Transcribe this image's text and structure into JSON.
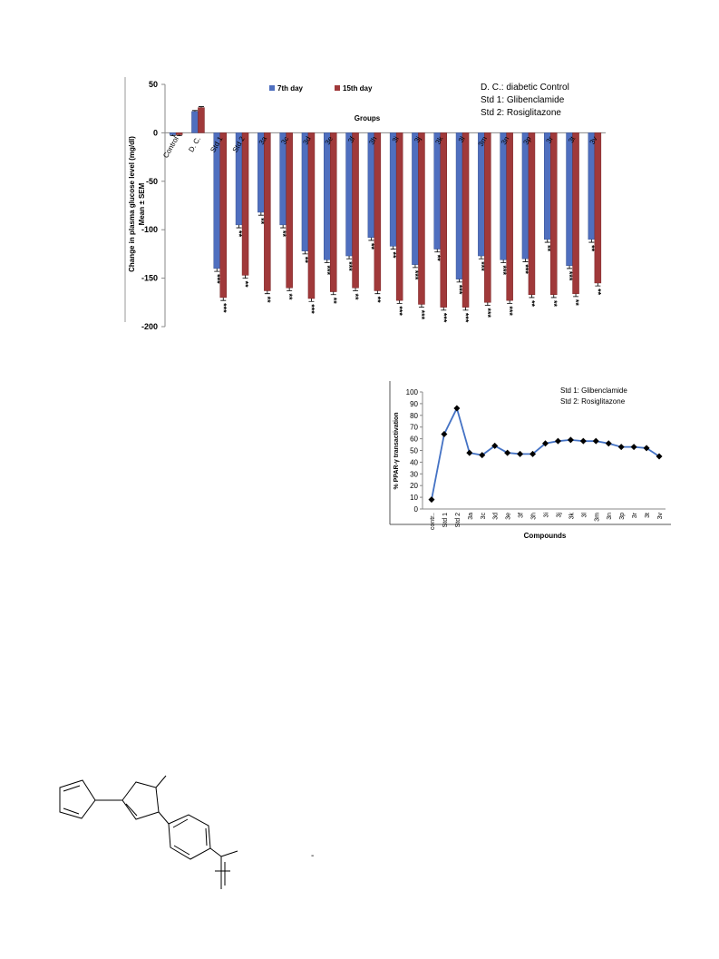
{
  "chart_data": [
    {
      "type": "bar",
      "ylabel": [
        "Change in plasma glucose level (mg/dl)",
        "Mean ± SEM"
      ],
      "xlabel": "Groups",
      "annotations": [
        "D. C.: diabetic Control",
        "Std 1: Glibenclamide",
        "Std 2: Rosiglitazone"
      ],
      "categories": [
        "Control",
        "D. C.",
        "Std 1",
        "Std 2",
        "3a",
        "3c",
        "3d",
        "3e",
        "3f",
        "3h",
        "3i",
        "3j",
        "3k",
        "3l",
        "3m",
        "3n",
        "3p",
        "3r",
        "3t",
        "3v"
      ],
      "series": [
        {
          "name": "7th day",
          "color": "#4f6fbf",
          "values": [
            -2,
            22,
            -140,
            -95,
            -82,
            -95,
            -122,
            -131,
            -127,
            -108,
            -117,
            -136,
            -120,
            -151,
            -127,
            -131,
            -130,
            -110,
            -137,
            -110
          ],
          "errors": [
            1,
            1,
            3,
            3,
            3,
            3,
            3,
            3,
            3,
            3,
            3,
            3,
            3,
            3,
            3,
            3,
            3,
            3,
            3,
            3
          ],
          "significance": [
            null,
            null,
            "***",
            "**",
            "**",
            "**",
            "**",
            "***",
            "***",
            "**",
            "**",
            "***",
            "**",
            "***",
            "***",
            "***",
            "***",
            "**",
            "***",
            "**"
          ]
        },
        {
          "name": "15th day",
          "color": "#a0393a",
          "values": [
            -2,
            26,
            -170,
            -147,
            -163,
            -160,
            -171,
            -164,
            -160,
            -163,
            -173,
            -177,
            -180,
            -180,
            -175,
            -173,
            -167,
            -167,
            -166,
            -155
          ],
          "errors": [
            1,
            1,
            3,
            3,
            3,
            3,
            3,
            3,
            3,
            3,
            3,
            3,
            3,
            3,
            3,
            3,
            3,
            3,
            3,
            3
          ],
          "significance": [
            null,
            null,
            "***",
            "**",
            "**",
            "**",
            "***",
            "**",
            "**",
            "**",
            "***",
            "***",
            "***",
            "***",
            "***",
            "***",
            "**",
            "**",
            "**",
            "**"
          ]
        }
      ],
      "ylim": [
        -200,
        50
      ],
      "yticks": [
        -200,
        -150,
        -100,
        -50,
        0,
        50
      ]
    },
    {
      "type": "line",
      "ylabel": "% PPAR-γ transactivation",
      "xlabel": "Compounds",
      "annotations": [
        "Std 1: Glibenclamide",
        "Std 2: Rosiglitazone"
      ],
      "categories": [
        "contr..",
        "Std 1",
        "Std 2",
        "3a",
        "3c",
        "3d",
        "3e",
        "3f",
        "3h",
        "3i",
        "3j",
        "3k",
        "3l",
        "3m",
        "3n",
        "3p",
        "3r",
        "3t",
        "3v"
      ],
      "values": [
        8,
        64,
        86,
        48,
        46,
        54,
        48,
        47,
        47,
        56,
        58,
        59,
        58,
        58,
        56,
        53,
        53,
        52,
        45
      ],
      "color": "#4472c4",
      "marker_color": "#000000",
      "ylim": [
        0,
        100
      ],
      "yticks": [
        0,
        10,
        20,
        30,
        40,
        50,
        60,
        70,
        80,
        90,
        100
      ]
    }
  ],
  "structure": {
    "mark": "-"
  }
}
